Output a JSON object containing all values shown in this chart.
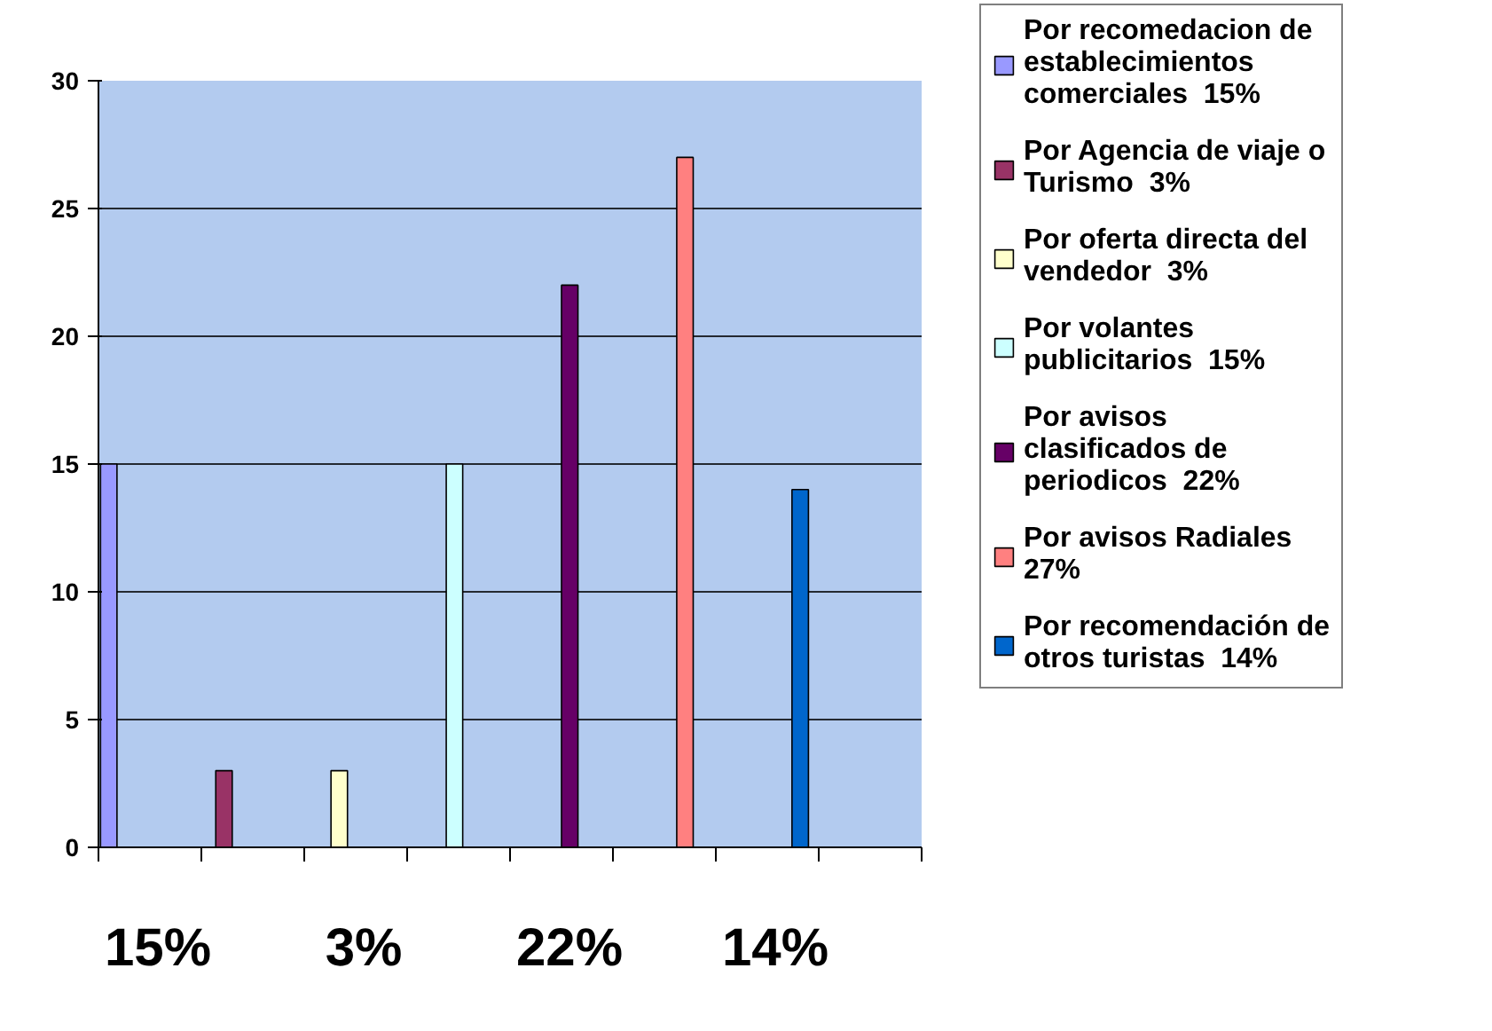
{
  "chart_data": {
    "type": "bar",
    "stacked": true,
    "categories": [
      null,
      null,
      null,
      null,
      null,
      null,
      null
    ],
    "series": [
      {
        "name": "Por recomedacion de establecimientos comerciales  15%",
        "color": "#9999ff",
        "values": [
          15,
          null,
          null,
          null,
          null,
          null,
          null
        ]
      },
      {
        "name": "Por Agencia de viaje o Turismo  3%",
        "color": "#993366",
        "values": [
          null,
          3,
          null,
          null,
          null,
          null,
          null
        ]
      },
      {
        "name": "Por oferta directa del vendedor  3%",
        "color": "#ffffcc",
        "values": [
          null,
          null,
          3,
          null,
          null,
          null,
          null
        ]
      },
      {
        "name": "Por volantes publicitarios  15%",
        "color": "#ccffff",
        "values": [
          null,
          null,
          null,
          15,
          null,
          null,
          null
        ]
      },
      {
        "name": "Por avisos clasificados de periodicos  22%",
        "color": "#660066",
        "values": [
          null,
          null,
          null,
          null,
          22,
          null,
          null
        ]
      },
      {
        "name": "Por avisos Radiales 27%",
        "color": "#ff8080",
        "values": [
          null,
          null,
          null,
          null,
          null,
          27,
          null
        ]
      },
      {
        "name": "Por recomendación de otros turistas  14%",
        "color": "#0066cc",
        "values": [
          null,
          null,
          null,
          null,
          null,
          null,
          14
        ]
      }
    ],
    "ylim": [
      0,
      30
    ],
    "yticks": [
      0,
      5,
      10,
      15,
      20,
      25,
      30
    ],
    "grid": "y",
    "legend": "right",
    "annotations": [
      "15%",
      "3%",
      "22%",
      "14%"
    ]
  }
}
